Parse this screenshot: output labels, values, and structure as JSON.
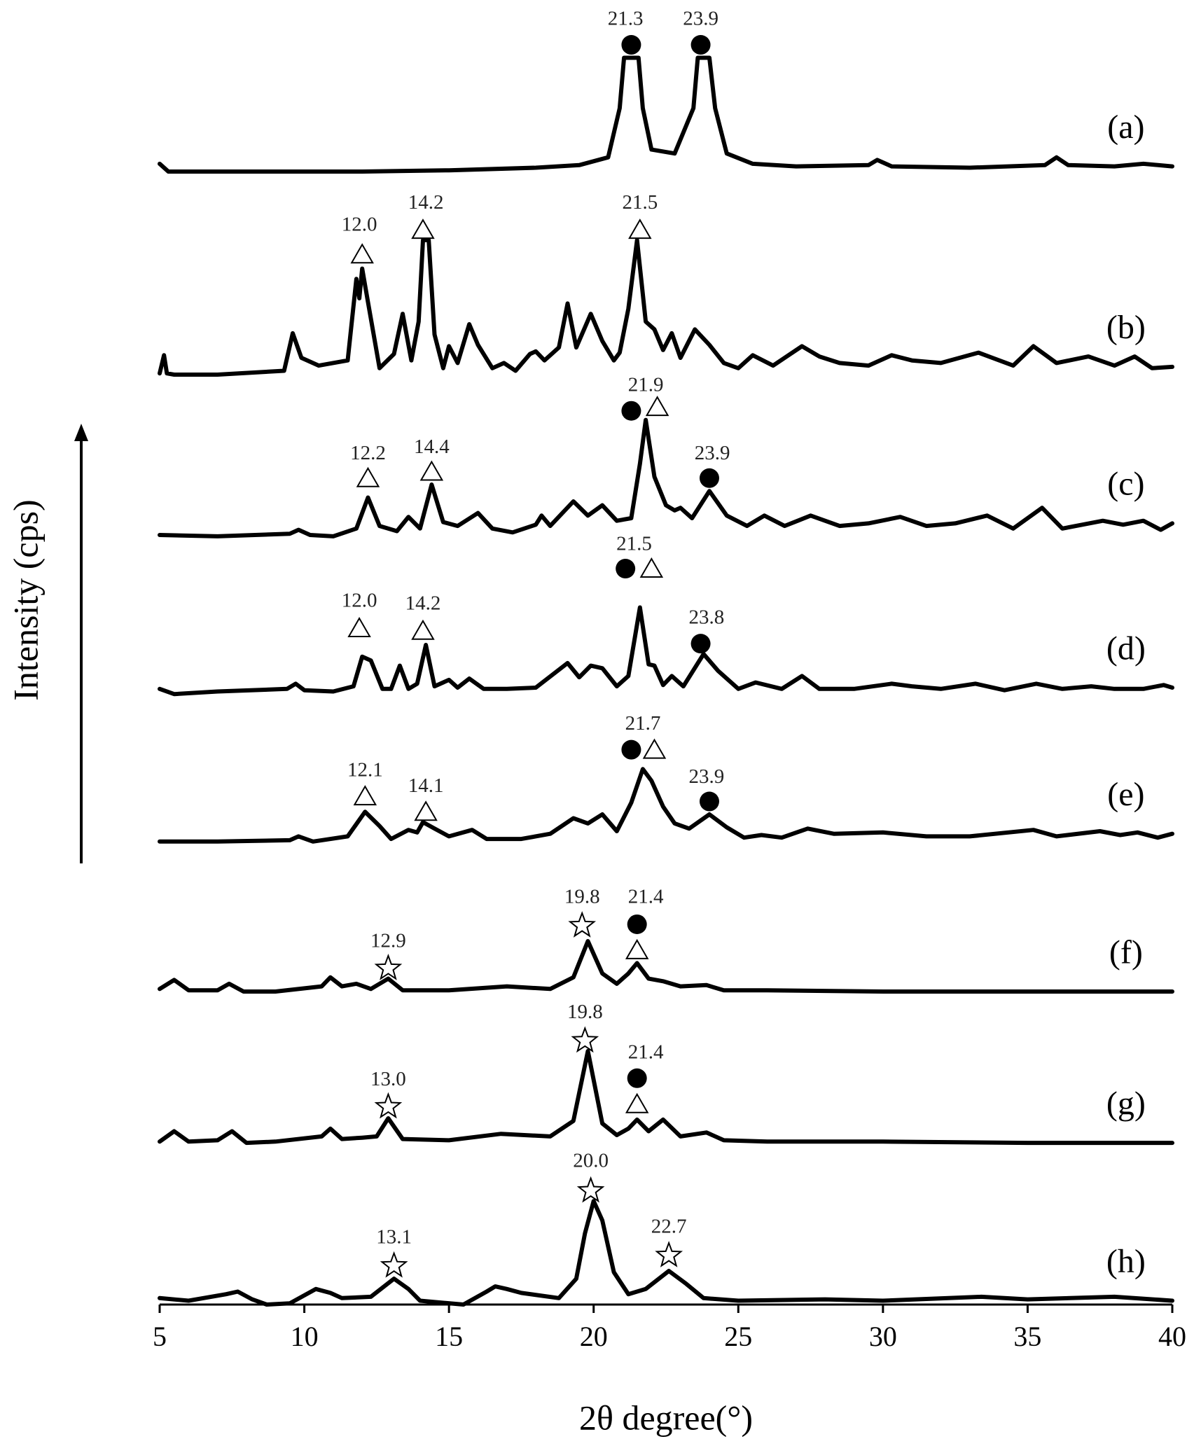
{
  "chart_data": {
    "type": "line",
    "xlabel": "2θ degree(°)",
    "ylabel": "Intensity (cps)",
    "xlim": [
      5,
      40
    ],
    "xticks": [
      5,
      10,
      15,
      20,
      25,
      30,
      35,
      40
    ],
    "ylim": [
      0,
      100
    ],
    "series": [
      {
        "name": "(a)",
        "color": "#000000",
        "x": [
          5,
          5.3,
          8,
          12,
          15,
          18,
          19.5,
          20.5,
          20.9,
          21.05,
          21.55,
          21.7,
          22.0,
          22.8,
          23.45,
          23.6,
          24.0,
          24.2,
          24.6,
          25.5,
          27,
          29.5,
          29.8,
          30.3,
          33,
          35.6,
          36,
          36.4,
          38,
          39,
          40
        ],
        "values": [
          88.2,
          87.6,
          87.6,
          87.6,
          87.7,
          87.9,
          88.1,
          88.7,
          92.5,
          96.4,
          96.4,
          92.5,
          89.3,
          89.0,
          92.5,
          96.4,
          96.4,
          92.5,
          89.0,
          88.2,
          88.0,
          88.1,
          88.5,
          88.0,
          87.9,
          88.1,
          88.7,
          88.1,
          88.0,
          88.2,
          88.0
        ]
      },
      {
        "name": "(b)",
        "color": "#000000",
        "x": [
          5,
          5.15,
          5.25,
          5.5,
          7,
          9.3,
          9.6,
          9.9,
          10.5,
          11.5,
          11.8,
          11.9,
          12.0,
          12.2,
          12.6,
          13.1,
          13.4,
          13.7,
          13.95,
          14.1,
          14.3,
          14.5,
          14.8,
          15.0,
          15.3,
          15.7,
          16.0,
          16.5,
          16.9,
          17.3,
          17.8,
          18.0,
          18.3,
          18.8,
          19.1,
          19.4,
          19.9,
          20.3,
          20.7,
          20.9,
          21.2,
          21.5,
          21.8,
          22.1,
          22.4,
          22.7,
          23.0,
          23.5,
          24.0,
          24.5,
          25.0,
          25.5,
          26.2,
          27.2,
          27.8,
          28.5,
          29.5,
          30.3,
          31.0,
          32,
          33.3,
          34.5,
          35.2,
          36,
          37.1,
          38,
          38.7,
          39.3,
          40
        ],
        "values": [
          72.0,
          73.4,
          72.0,
          71.9,
          71.9,
          72.2,
          75.1,
          73.2,
          72.6,
          73.0,
          79.3,
          77.8,
          80.1,
          77.5,
          72.4,
          73.5,
          76.6,
          73.0,
          76.0,
          82.3,
          82.3,
          75.0,
          72.4,
          74.1,
          72.8,
          75.8,
          74.2,
          72.4,
          72.8,
          72.2,
          73.5,
          73.7,
          73.0,
          74.0,
          77.4,
          74.0,
          76.6,
          74.5,
          73.0,
          73.6,
          77.0,
          82.3,
          76.0,
          75.4,
          73.8,
          75.1,
          73.2,
          75.4,
          74.2,
          72.8,
          72.4,
          73.4,
          72.6,
          74.1,
          73.3,
          72.8,
          72.6,
          73.4,
          73.0,
          72.8,
          73.6,
          72.6,
          74.1,
          72.8,
          73.3,
          72.6,
          73.3,
          72.4,
          72.5
        ]
      },
      {
        "name": "(c)",
        "color": "#000000",
        "x": [
          5,
          7,
          9.5,
          9.8,
          10.2,
          11,
          11.8,
          12.2,
          12.6,
          13.2,
          13.6,
          14.0,
          14.4,
          14.8,
          15.3,
          16.0,
          16.5,
          17.2,
          18.0,
          18.2,
          18.5,
          19.3,
          19.8,
          20.3,
          20.8,
          21.3,
          21.6,
          21.8,
          22.1,
          22.5,
          22.8,
          23.0,
          23.4,
          24.0,
          24.6,
          25.3,
          25.9,
          26.6,
          27.5,
          28.5,
          29.5,
          30.6,
          31.5,
          32.5,
          33.6,
          34.5,
          35.5,
          36.2,
          37.6,
          38.3,
          39.0,
          39.6,
          40
        ],
        "values": [
          59.5,
          59.4,
          59.6,
          59.9,
          59.5,
          59.4,
          60.0,
          62.4,
          60.2,
          59.8,
          60.9,
          60.0,
          63.4,
          60.5,
          60.2,
          61.2,
          60.0,
          59.7,
          60.3,
          61.0,
          60.2,
          62.1,
          61.0,
          61.8,
          60.6,
          60.8,
          65.0,
          68.4,
          64.0,
          61.8,
          61.4,
          61.6,
          60.8,
          62.9,
          61.0,
          60.2,
          61.0,
          60.2,
          61.0,
          60.2,
          60.4,
          60.9,
          60.2,
          60.4,
          61.0,
          60.0,
          61.6,
          60.0,
          60.6,
          60.3,
          60.6,
          59.9,
          60.4
        ]
      },
      {
        "name": "(d)",
        "color": "#000000",
        "x": [
          5,
          5.5,
          7,
          9.4,
          9.7,
          10.0,
          11,
          11.7,
          12.0,
          12.3,
          12.7,
          13.0,
          13.3,
          13.6,
          13.9,
          14.2,
          14.5,
          15.0,
          15.3,
          15.7,
          16.2,
          17,
          18,
          19.1,
          19.5,
          19.9,
          20.3,
          20.8,
          21.2,
          21.6,
          21.9,
          22.1,
          22.4,
          22.7,
          23.1,
          23.8,
          24.3,
          25.0,
          25.6,
          26.5,
          27.2,
          27.8,
          29,
          30.3,
          31,
          32,
          33.2,
          34.2,
          35.3,
          36.2,
          37.2,
          38,
          39,
          39.7,
          40
        ],
        "values": [
          47.6,
          47.2,
          47.4,
          47.6,
          48.0,
          47.5,
          47.4,
          47.8,
          50.1,
          49.8,
          47.6,
          47.6,
          49.4,
          47.6,
          48.0,
          51.0,
          47.8,
          48.3,
          47.7,
          48.4,
          47.6,
          47.6,
          47.7,
          49.6,
          48.5,
          49.4,
          49.2,
          47.8,
          48.6,
          53.9,
          49.5,
          49.4,
          47.9,
          48.6,
          47.8,
          50.3,
          49.0,
          47.6,
          48.1,
          47.6,
          48.6,
          47.6,
          47.6,
          48.0,
          47.8,
          47.6,
          48.0,
          47.5,
          48.0,
          47.6,
          47.8,
          47.6,
          47.6,
          47.9,
          47.7
        ]
      },
      {
        "name": "(e)",
        "color": "#000000",
        "x": [
          5,
          7,
          9.5,
          9.8,
          10.3,
          11.5,
          12.1,
          12.6,
          13.0,
          13.6,
          13.9,
          14.1,
          14.5,
          15.0,
          15.8,
          16.3,
          17.5,
          18.5,
          19.3,
          19.8,
          20.3,
          20.8,
          21.3,
          21.7,
          22.0,
          22.4,
          22.8,
          23.3,
          24.0,
          24.6,
          25.2,
          25.8,
          26.5,
          27.4,
          28.3,
          30,
          31.5,
          33,
          35.2,
          36,
          37.5,
          38.2,
          38.8,
          39.5,
          40
        ],
        "values": [
          35.8,
          35.8,
          35.9,
          36.2,
          35.8,
          36.2,
          38.1,
          37.0,
          36.0,
          36.7,
          36.5,
          37.3,
          36.8,
          36.2,
          36.7,
          36.0,
          36.0,
          36.4,
          37.6,
          37.2,
          37.9,
          36.6,
          38.8,
          41.4,
          40.5,
          38.5,
          37.2,
          36.8,
          37.9,
          36.9,
          36.1,
          36.3,
          36.1,
          36.8,
          36.4,
          36.5,
          36.2,
          36.2,
          36.7,
          36.2,
          36.6,
          36.3,
          36.5,
          36.1,
          36.4
        ]
      },
      {
        "name": "(f)",
        "color": "#000000",
        "x": [
          5,
          5.5,
          6,
          7,
          7.4,
          7.9,
          9,
          10.6,
          10.9,
          11.3,
          11.8,
          12.3,
          12.9,
          13.4,
          15,
          17,
          18.5,
          19.3,
          19.8,
          20.3,
          20.8,
          21.2,
          21.5,
          21.9,
          22.4,
          23.0,
          23.9,
          24.5,
          26,
          30,
          35,
          40
        ],
        "values": [
          24.4,
          25.1,
          24.3,
          24.3,
          24.8,
          24.2,
          24.2,
          24.6,
          25.3,
          24.6,
          24.8,
          24.4,
          25.2,
          24.3,
          24.3,
          24.6,
          24.4,
          25.3,
          28.1,
          25.6,
          24.8,
          25.6,
          26.4,
          25.2,
          25.0,
          24.6,
          24.7,
          24.3,
          24.3,
          24.2,
          24.2,
          24.2
        ]
      },
      {
        "name": "(g)",
        "color": "#000000",
        "x": [
          5,
          5.5,
          6,
          7,
          7.5,
          8,
          9,
          10.6,
          10.9,
          11.3,
          12.0,
          12.5,
          12.9,
          13.4,
          15,
          16.8,
          18.5,
          19.3,
          19.8,
          20.3,
          20.8,
          21.2,
          21.5,
          21.9,
          22.4,
          23.0,
          23.9,
          24.5,
          26,
          30,
          35,
          40
        ],
        "values": [
          12.6,
          13.4,
          12.6,
          12.7,
          13.4,
          12.5,
          12.6,
          13.0,
          13.6,
          12.8,
          12.9,
          13.0,
          14.4,
          12.8,
          12.7,
          13.2,
          13.0,
          14.2,
          19.6,
          14.0,
          13.1,
          13.6,
          14.3,
          13.4,
          14.3,
          13.0,
          13.3,
          12.7,
          12.6,
          12.6,
          12.5,
          12.5
        ]
      },
      {
        "name": "(h)",
        "color": "#000000",
        "x": [
          5,
          6,
          7.3,
          7.7,
          8.2,
          8.7,
          9.5,
          10.4,
          10.9,
          11.3,
          12.3,
          13.1,
          13.6,
          14.0,
          15.5,
          16.3,
          16.6,
          17.0,
          17.5,
          18.8,
          19.4,
          19.7,
          20.0,
          20.3,
          20.7,
          21.2,
          21.8,
          22.6,
          23.2,
          23.8,
          25,
          28,
          30,
          33.4,
          35,
          38,
          40
        ],
        "values": [
          0.5,
          0.3,
          0.8,
          1.0,
          0.4,
          0.0,
          0.1,
          1.2,
          0.9,
          0.5,
          0.6,
          2.0,
          1.2,
          0.3,
          0.0,
          1.0,
          1.4,
          1.2,
          0.9,
          0.5,
          2.0,
          5.5,
          8.0,
          6.5,
          2.5,
          0.8,
          1.2,
          2.6,
          1.6,
          0.5,
          0.3,
          0.4,
          0.3,
          0.6,
          0.4,
          0.6,
          0.3
        ]
      }
    ],
    "markers": [
      {
        "shape": "circle",
        "x": 21.3,
        "y": 97.4
      },
      {
        "shape": "circle",
        "x": 23.7,
        "y": 97.4
      },
      {
        "shape": "triangle",
        "x": 12.0,
        "y": 81.2
      },
      {
        "shape": "triangle",
        "x": 14.1,
        "y": 83.1
      },
      {
        "shape": "triangle",
        "x": 21.6,
        "y": 83.1
      },
      {
        "shape": "circle",
        "x": 21.3,
        "y": 69.1
      },
      {
        "shape": "triangle",
        "x": 22.2,
        "y": 69.4
      },
      {
        "shape": "triangle",
        "x": 12.2,
        "y": 63.9
      },
      {
        "shape": "triangle",
        "x": 14.4,
        "y": 64.4
      },
      {
        "shape": "circle",
        "x": 24.0,
        "y": 63.9
      },
      {
        "shape": "triangle",
        "x": 11.9,
        "y": 52.3
      },
      {
        "shape": "triangle",
        "x": 14.1,
        "y": 52.1
      },
      {
        "shape": "circle",
        "x": 21.1,
        "y": 56.9
      },
      {
        "shape": "triangle",
        "x": 22.0,
        "y": 56.9
      },
      {
        "shape": "circle",
        "x": 23.7,
        "y": 51.1
      },
      {
        "shape": "triangle",
        "x": 12.1,
        "y": 39.3
      },
      {
        "shape": "triangle",
        "x": 14.2,
        "y": 38.1
      },
      {
        "shape": "circle",
        "x": 21.3,
        "y": 42.9
      },
      {
        "shape": "triangle",
        "x": 22.1,
        "y": 42.9
      },
      {
        "shape": "circle",
        "x": 24.0,
        "y": 38.9
      },
      {
        "shape": "star",
        "x": 12.9,
        "y": 26.1
      },
      {
        "shape": "star",
        "x": 19.6,
        "y": 29.4
      },
      {
        "shape": "circle",
        "x": 21.5,
        "y": 29.4
      },
      {
        "shape": "triangle",
        "x": 21.5,
        "y": 27.4
      },
      {
        "shape": "star",
        "x": 12.9,
        "y": 15.4
      },
      {
        "shape": "star",
        "x": 19.7,
        "y": 20.5
      },
      {
        "shape": "circle",
        "x": 21.5,
        "y": 17.5
      },
      {
        "shape": "triangle",
        "x": 21.5,
        "y": 15.5
      },
      {
        "shape": "star",
        "x": 13.1,
        "y": 3.1
      },
      {
        "shape": "star",
        "x": 19.9,
        "y": 8.9
      },
      {
        "shape": "star",
        "x": 22.6,
        "y": 3.9
      }
    ],
    "peak_labels": [
      {
        "text": "21.3",
        "x": 21.1,
        "y": 99.3
      },
      {
        "text": "23.9",
        "x": 23.7,
        "y": 99.3
      },
      {
        "text": "12.0",
        "x": 11.9,
        "y": 83.4
      },
      {
        "text": "14.2",
        "x": 14.2,
        "y": 85.1
      },
      {
        "text": "21.5",
        "x": 21.6,
        "y": 85.1
      },
      {
        "text": "21.9",
        "x": 21.8,
        "y": 71.0
      },
      {
        "text": "12.2",
        "x": 12.2,
        "y": 65.7
      },
      {
        "text": "14.4",
        "x": 14.4,
        "y": 66.2
      },
      {
        "text": "23.9",
        "x": 24.1,
        "y": 65.7
      },
      {
        "text": "12.0",
        "x": 11.9,
        "y": 54.3
      },
      {
        "text": "14.2",
        "x": 14.1,
        "y": 54.1
      },
      {
        "text": "21.5",
        "x": 21.4,
        "y": 58.7
      },
      {
        "text": "23.8",
        "x": 23.9,
        "y": 53.0
      },
      {
        "text": "12.1",
        "x": 12.1,
        "y": 41.2
      },
      {
        "text": "14.1",
        "x": 14.2,
        "y": 40.0
      },
      {
        "text": "21.7",
        "x": 21.7,
        "y": 44.8
      },
      {
        "text": "23.9",
        "x": 23.9,
        "y": 40.7
      },
      {
        "text": "12.9",
        "x": 12.9,
        "y": 28.0
      },
      {
        "text": "19.8",
        "x": 19.6,
        "y": 31.4
      },
      {
        "text": "21.4",
        "x": 21.8,
        "y": 31.4
      },
      {
        "text": "13.0",
        "x": 12.9,
        "y": 17.3
      },
      {
        "text": "19.8",
        "x": 19.7,
        "y": 22.5
      },
      {
        "text": "21.4",
        "x": 21.8,
        "y": 19.4
      },
      {
        "text": "13.1",
        "x": 13.1,
        "y": 5.1
      },
      {
        "text": "20.0",
        "x": 19.9,
        "y": 11.0
      },
      {
        "text": "22.7",
        "x": 22.6,
        "y": 5.9
      }
    ]
  }
}
